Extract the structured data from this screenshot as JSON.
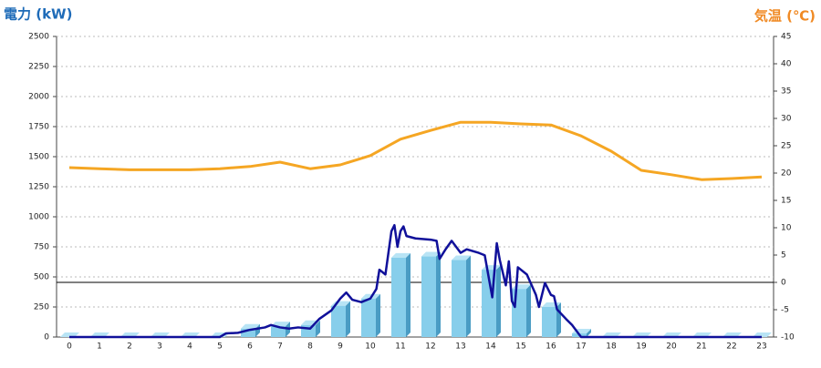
{
  "chart_data": {
    "type": "combo",
    "y_label": "電力 (kW)",
    "y2_label": "気温 (℃)",
    "categories": [
      "0",
      "1",
      "2",
      "3",
      "4",
      "5",
      "6",
      "7",
      "8",
      "9",
      "10",
      "11",
      "12",
      "13",
      "14",
      "15",
      "16",
      "17",
      "18",
      "19",
      "20",
      "21",
      "22",
      "23"
    ],
    "ylim": [
      0,
      2500
    ],
    "yticks": [
      0,
      250,
      500,
      750,
      1000,
      1250,
      1500,
      1750,
      2000,
      2250,
      2500
    ],
    "y2lim": [
      -10,
      45
    ],
    "y2ticks": [
      -10,
      -5,
      0,
      5,
      10,
      15,
      20,
      25,
      30,
      35,
      40,
      45
    ],
    "grid": true,
    "series": [
      {
        "type": "bar",
        "color": "#87ceeb",
        "values": [
          0,
          0,
          0,
          0,
          0,
          0,
          70,
          90,
          100,
          260,
          320,
          660,
          670,
          640,
          560,
          400,
          250,
          30,
          0,
          0,
          0,
          0,
          0,
          0
        ]
      },
      {
        "type": "line",
        "color": "#10109a",
        "x": [
          0,
          5,
          5.2,
          5.6,
          6,
          6.5,
          6.7,
          7,
          7.3,
          7.6,
          8,
          8.3,
          8.7,
          9,
          9.2,
          9.4,
          9.7,
          10,
          10.2,
          10.3,
          10.5,
          10.6,
          10.7,
          10.8,
          10.9,
          11,
          11.1,
          11.2,
          11.5,
          12,
          12.2,
          12.3,
          12.5,
          12.7,
          13,
          13.2,
          13.6,
          13.8,
          14,
          14.05,
          14.2,
          14.3,
          14.5,
          14.6,
          14.7,
          14.8,
          14.9,
          15.2,
          15.5,
          15.6,
          15.8,
          16,
          16.1,
          16.2,
          16.5,
          16.7,
          17,
          17.5,
          23
        ],
        "values": [
          0,
          0,
          30,
          35,
          60,
          80,
          100,
          80,
          70,
          80,
          70,
          150,
          220,
          320,
          370,
          310,
          290,
          320,
          400,
          560,
          520,
          700,
          880,
          930,
          750,
          880,
          920,
          840,
          820,
          810,
          800,
          650,
          730,
          800,
          700,
          730,
          700,
          680,
          400,
          330,
          780,
          640,
          430,
          630,
          300,
          250,
          580,
          520,
          350,
          250,
          450,
          350,
          340,
          230,
          150,
          100,
          0,
          0,
          0
        ]
      },
      {
        "type": "line",
        "axis": "y2",
        "color": "#f5a623",
        "values": [
          21,
          20.8,
          20.6,
          20.6,
          20.6,
          20.8,
          21.2,
          22,
          20.8,
          21.5,
          23.2,
          26.2,
          27.8,
          29.3,
          29.3,
          29,
          28.8,
          26.8,
          24,
          20.5,
          19.7,
          18.8,
          19,
          19.3
        ]
      }
    ]
  }
}
